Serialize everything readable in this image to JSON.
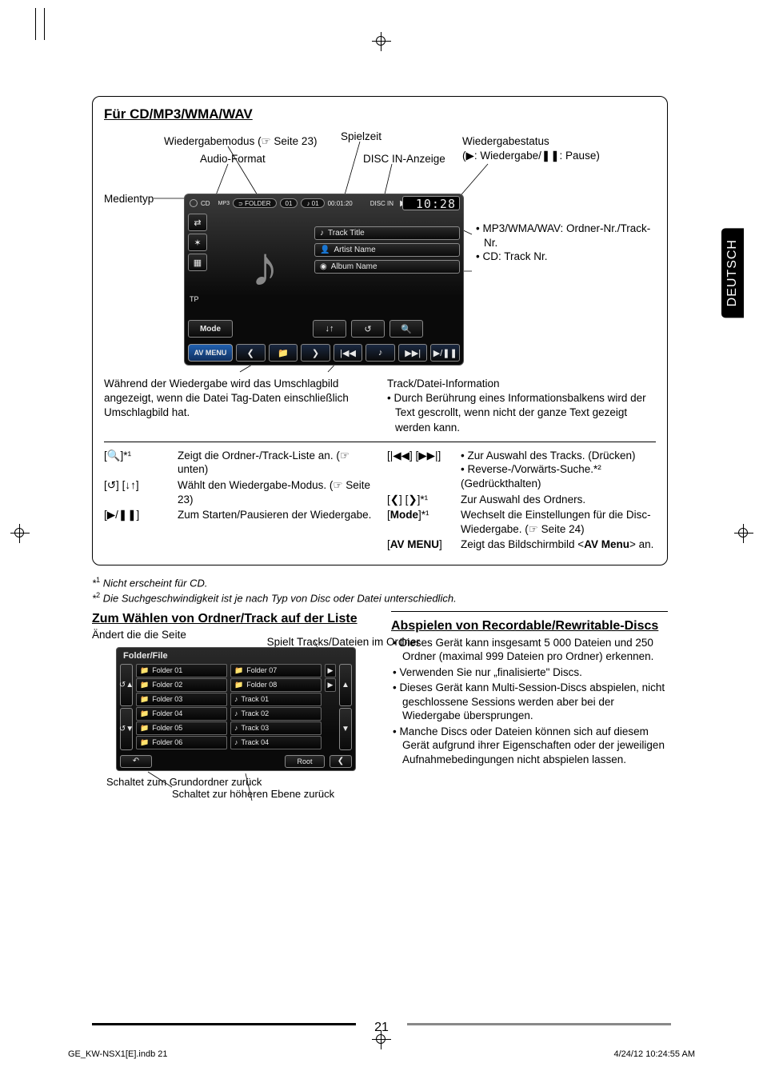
{
  "lang_tab": "DEUTSCH",
  "box": {
    "title": "Für CD/MP3/WMA/WAV",
    "callouts": {
      "wiedergabemodus": "Wiedergabemodus (☞ Seite 23)",
      "audio_format": "Audio-Format",
      "medientyp": "Medientyp",
      "spielzeit": "Spielzeit",
      "disc_in": "DISC IN-Anzeige",
      "wiedergabestatus": "Wiedergabestatus",
      "wiedergabestatus_sub": "(▶: Wiedergabe/❚❚: Pause)",
      "right_bullet1": "MP3/WMA/WAV: Ordner-Nr./Track-Nr.",
      "right_bullet2": "CD: Track Nr."
    },
    "display": {
      "mp3_label": "MP3",
      "folder_label": "FOLDER",
      "folder_num": "01",
      "track_num": "01",
      "elapsed": "00:01:20",
      "disc_in": "DISC IN",
      "clock": "10:28",
      "tp": "TP",
      "mode": "Mode",
      "av_menu": "AV MENU",
      "track_title": "Track Title",
      "artist_name": "Artist Name",
      "album_name": "Album Name"
    },
    "below_left_1": "Während der Wiedergabe wird das Umschlagbild angezeigt, wenn die Datei Tag-Daten einschließlich Umschlagbild hat.",
    "below_right_h": "Track/Datei-Information",
    "below_right_b": "Durch Berührung eines Informationsbalkens wird der Text gescrollt, wenn nicht der ganze Text gezeigt werden kann.",
    "ctrl_left": [
      {
        "key": "[🔍]*¹",
        "val": "Zeigt die Ordner-/Track-Liste an. (☞ unten)"
      },
      {
        "key": "[↺] [↓↑]",
        "val": "Wählt den Wiedergabe-Modus. (☞ Seite 23)"
      },
      {
        "key": "[▶/❚❚]",
        "val": "Zum Starten/Pausieren der Wiedergabe."
      }
    ],
    "ctrl_right": [
      {
        "key": "[|◀◀] [▶▶|]",
        "val_lines": [
          "• Zur Auswahl des Tracks. (Drücken)",
          "• Reverse-/Vorwärts-Suche.*² (Gedrückthalten)"
        ]
      },
      {
        "key": "[❮] [❯]*¹",
        "val_lines": [
          "Zur Auswahl des Ordners."
        ]
      },
      {
        "key": "[Mode]*¹",
        "key_html": "[<b>Mode</b>]*¹",
        "val_lines": [
          "Wechselt die Einstellungen für die Disc-Wiedergabe. (☞ Seite 24)"
        ]
      },
      {
        "key": "[AV MENU]",
        "key_html": "[<b>AV MENU</b>]",
        "val_lines": [
          "Zeigt das Bildschirmbild <<b>AV Menu</b>> an."
        ]
      }
    ]
  },
  "footnotes": {
    "f1": "Nicht erscheint für CD.",
    "f2": "Die Suchgeschwindigkeit ist je nach Typ von Disc oder Datei unterschiedlich."
  },
  "folder_section": {
    "heading": "Zum Wählen von Ordner/Track auf der Liste",
    "caption_top_left": "Ändert die die Seite",
    "caption_top_right": "Spielt Tracks/Dateien im Ordner",
    "caption_bottom_left": "Schaltet zum Grundordner zurück",
    "caption_bottom_right": "Schaltet zur höheren Ebene zurück",
    "header": "Folder/File",
    "left_items": [
      "Folder 01",
      "Folder 02",
      "Folder 03",
      "Folder 04",
      "Folder 05",
      "Folder 06"
    ],
    "right_items": [
      "Folder 07",
      "Folder 08",
      "Track 01",
      "Track 02",
      "Track 03",
      "Track 04"
    ],
    "root": "Root"
  },
  "recordable": {
    "heading": "Abspielen von Recordable/Rewritable-Discs",
    "bullets": [
      "Dieses Gerät kann insgesamt 5 000 Dateien und 250 Ordner (maximal 999 Dateien pro Ordner) erkennen.",
      "Verwenden Sie nur „finalisierte\" Discs.",
      "Dieses Gerät kann Multi-Session-Discs abspielen, nicht geschlossene Sessions werden aber bei der Wiedergabe übersprungen.",
      "Manche Discs oder Dateien können sich auf diesem Gerät aufgrund ihrer Eigenschaften oder der jeweiligen Aufnahmebedingungen nicht abspielen lassen."
    ]
  },
  "page_number": "21",
  "footer": {
    "left": "GE_KW-NSX1[E].indb   21",
    "right": "4/24/12   10:24:55 AM"
  }
}
